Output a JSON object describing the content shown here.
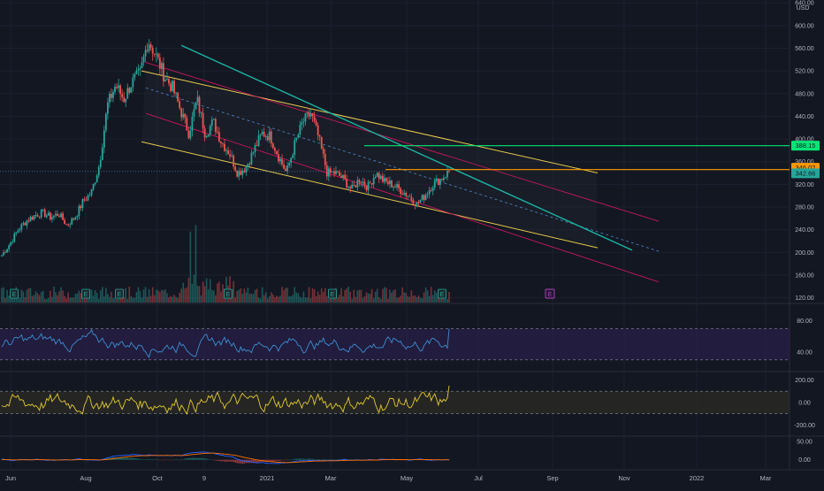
{
  "currency": "USD",
  "colors": {
    "background": "#131722",
    "bull": "#26a69a",
    "bear": "#ef5350",
    "text": "#b2b5be",
    "grid": "#1c2030",
    "teal_line": "#19b5a2",
    "yellow_channel": "#e6c84c",
    "red_channel": "#c2185b",
    "green_level": "#00e676",
    "orange_level": "#ff9800",
    "dashed_mid": "#4f88c8",
    "rsi_line": "#3b8fd1",
    "rsi_band": "#2a1f4a",
    "cci_line": "#e3c92f",
    "cci_band": "#2b2a24",
    "macd_line": "#2962ff",
    "signal_line": "#ff6d00",
    "earnings_green": "#26a69a",
    "earnings_purple": "#ab47bc"
  },
  "chart_data": [
    {
      "type": "candlestick",
      "panel": "price",
      "y_axis_ticks": [
        "640.00",
        "600.00",
        "560.00",
        "520.00",
        "480.00",
        "440.00",
        "400.00",
        "360.00",
        "320.00",
        "280.00",
        "240.00",
        "200.00",
        "160.00",
        "120.00"
      ],
      "ylim": [
        110,
        645
      ],
      "x_axis_ticks": [
        "Jun",
        "Aug",
        "Oct",
        "9",
        "2021",
        "Mar",
        "May",
        "Jul",
        "Sep",
        "Nov",
        "2022",
        "Mar"
      ],
      "price_path": [
        [
          "Jun",
          195
        ],
        [
          "Jun",
          215
        ],
        [
          "Jun",
          240
        ],
        [
          "Jul",
          255
        ],
        [
          "Jul",
          265
        ],
        [
          "Jul",
          270
        ],
        [
          "Jul",
          262
        ],
        [
          "Aug",
          268
        ],
        [
          "Aug",
          248
        ],
        [
          "Aug",
          262
        ],
        [
          "Aug",
          290
        ],
        [
          "Aug",
          305
        ],
        [
          "Sep",
          355
        ],
        [
          "Sep",
          460
        ],
        [
          "Sep",
          495
        ],
        [
          "Sep",
          470
        ],
        [
          "Sep",
          500
        ],
        [
          "Oct",
          515
        ],
        [
          "Oct",
          575
        ],
        [
          "Oct",
          545
        ],
        [
          "Oct",
          510
        ],
        [
          "Oct",
          490
        ],
        [
          "Nov",
          450
        ],
        [
          "Nov",
          410
        ],
        [
          "Nov",
          470
        ],
        [
          "Nov",
          410
        ],
        [
          "Dec",
          430
        ],
        [
          "Dec",
          395
        ],
        [
          "Dec",
          375
        ],
        [
          "Dec",
          340
        ],
        [
          "2021",
          350
        ],
        [
          "2021",
          380
        ],
        [
          "Jan",
          410
        ],
        [
          "Jan",
          405
        ],
        [
          "Feb",
          370
        ],
        [
          "Feb",
          340
        ],
        [
          "Feb",
          390
        ],
        [
          "Feb",
          430
        ],
        [
          "Mar",
          445
        ],
        [
          "Mar",
          400
        ],
        [
          "Mar",
          340
        ],
        [
          "Mar",
          340
        ],
        [
          "Apr",
          330
        ],
        [
          "Apr",
          310
        ],
        [
          "Apr",
          330
        ],
        [
          "Apr",
          315
        ],
        [
          "May",
          340
        ],
        [
          "May",
          325
        ],
        [
          "May",
          320
        ],
        [
          "May",
          310
        ],
        [
          "May",
          300
        ],
        [
          "May",
          285
        ],
        [
          "Jun",
          300
        ],
        [
          "Jun",
          320
        ],
        [
          "Jun",
          330
        ],
        [
          "Jun",
          342.66
        ]
      ],
      "price_labels": [
        {
          "value": "388.15",
          "color": "#00e676"
        },
        {
          "value": "346.02",
          "color": "#ff9800"
        },
        {
          "value": "342.66",
          "color": "#26a69a"
        }
      ],
      "earnings_markers": [
        "E",
        "E",
        "E",
        "E",
        "E",
        "E"
      ]
    },
    {
      "type": "line",
      "panel": "rsi",
      "y_axis_ticks": [
        "80.00",
        "40.00"
      ],
      "ylim": [
        15,
        100
      ],
      "bands": [
        70,
        30
      ]
    },
    {
      "type": "line",
      "panel": "cci",
      "y_axis_ticks": [
        "200.00",
        "0.00",
        "-200.00"
      ],
      "ylim": [
        -300,
        260
      ],
      "bands": [
        100,
        -100
      ]
    },
    {
      "type": "line",
      "panel": "macd",
      "y_axis_ticks": [
        "50.00",
        "0.00"
      ],
      "ylim": [
        -25,
        60
      ]
    }
  ]
}
